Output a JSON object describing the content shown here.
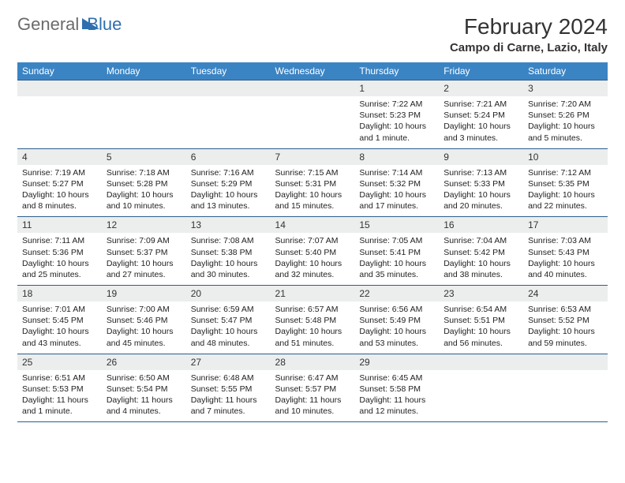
{
  "logo": {
    "text1": "General",
    "text2": "Blue"
  },
  "header": {
    "title": "February 2024",
    "location": "Campo di Carne, Lazio, Italy"
  },
  "colors": {
    "header_bg": "#3b84c4",
    "header_text": "#ffffff",
    "daynum_bg": "#eceded",
    "rule": "#2b5e8e",
    "logo_gray": "#6b6b6b",
    "logo_blue": "#2f6fb0"
  },
  "weekdays": [
    "Sunday",
    "Monday",
    "Tuesday",
    "Wednesday",
    "Thursday",
    "Friday",
    "Saturday"
  ],
  "weeks": [
    [
      null,
      null,
      null,
      null,
      {
        "n": "1",
        "sr": "Sunrise: 7:22 AM",
        "ss": "Sunset: 5:23 PM",
        "dl": "Daylight: 10 hours and 1 minute."
      },
      {
        "n": "2",
        "sr": "Sunrise: 7:21 AM",
        "ss": "Sunset: 5:24 PM",
        "dl": "Daylight: 10 hours and 3 minutes."
      },
      {
        "n": "3",
        "sr": "Sunrise: 7:20 AM",
        "ss": "Sunset: 5:26 PM",
        "dl": "Daylight: 10 hours and 5 minutes."
      }
    ],
    [
      {
        "n": "4",
        "sr": "Sunrise: 7:19 AM",
        "ss": "Sunset: 5:27 PM",
        "dl": "Daylight: 10 hours and 8 minutes."
      },
      {
        "n": "5",
        "sr": "Sunrise: 7:18 AM",
        "ss": "Sunset: 5:28 PM",
        "dl": "Daylight: 10 hours and 10 minutes."
      },
      {
        "n": "6",
        "sr": "Sunrise: 7:16 AM",
        "ss": "Sunset: 5:29 PM",
        "dl": "Daylight: 10 hours and 13 minutes."
      },
      {
        "n": "7",
        "sr": "Sunrise: 7:15 AM",
        "ss": "Sunset: 5:31 PM",
        "dl": "Daylight: 10 hours and 15 minutes."
      },
      {
        "n": "8",
        "sr": "Sunrise: 7:14 AM",
        "ss": "Sunset: 5:32 PM",
        "dl": "Daylight: 10 hours and 17 minutes."
      },
      {
        "n": "9",
        "sr": "Sunrise: 7:13 AM",
        "ss": "Sunset: 5:33 PM",
        "dl": "Daylight: 10 hours and 20 minutes."
      },
      {
        "n": "10",
        "sr": "Sunrise: 7:12 AM",
        "ss": "Sunset: 5:35 PM",
        "dl": "Daylight: 10 hours and 22 minutes."
      }
    ],
    [
      {
        "n": "11",
        "sr": "Sunrise: 7:11 AM",
        "ss": "Sunset: 5:36 PM",
        "dl": "Daylight: 10 hours and 25 minutes."
      },
      {
        "n": "12",
        "sr": "Sunrise: 7:09 AM",
        "ss": "Sunset: 5:37 PM",
        "dl": "Daylight: 10 hours and 27 minutes."
      },
      {
        "n": "13",
        "sr": "Sunrise: 7:08 AM",
        "ss": "Sunset: 5:38 PM",
        "dl": "Daylight: 10 hours and 30 minutes."
      },
      {
        "n": "14",
        "sr": "Sunrise: 7:07 AM",
        "ss": "Sunset: 5:40 PM",
        "dl": "Daylight: 10 hours and 32 minutes."
      },
      {
        "n": "15",
        "sr": "Sunrise: 7:05 AM",
        "ss": "Sunset: 5:41 PM",
        "dl": "Daylight: 10 hours and 35 minutes."
      },
      {
        "n": "16",
        "sr": "Sunrise: 7:04 AM",
        "ss": "Sunset: 5:42 PM",
        "dl": "Daylight: 10 hours and 38 minutes."
      },
      {
        "n": "17",
        "sr": "Sunrise: 7:03 AM",
        "ss": "Sunset: 5:43 PM",
        "dl": "Daylight: 10 hours and 40 minutes."
      }
    ],
    [
      {
        "n": "18",
        "sr": "Sunrise: 7:01 AM",
        "ss": "Sunset: 5:45 PM",
        "dl": "Daylight: 10 hours and 43 minutes."
      },
      {
        "n": "19",
        "sr": "Sunrise: 7:00 AM",
        "ss": "Sunset: 5:46 PM",
        "dl": "Daylight: 10 hours and 45 minutes."
      },
      {
        "n": "20",
        "sr": "Sunrise: 6:59 AM",
        "ss": "Sunset: 5:47 PM",
        "dl": "Daylight: 10 hours and 48 minutes."
      },
      {
        "n": "21",
        "sr": "Sunrise: 6:57 AM",
        "ss": "Sunset: 5:48 PM",
        "dl": "Daylight: 10 hours and 51 minutes."
      },
      {
        "n": "22",
        "sr": "Sunrise: 6:56 AM",
        "ss": "Sunset: 5:49 PM",
        "dl": "Daylight: 10 hours and 53 minutes."
      },
      {
        "n": "23",
        "sr": "Sunrise: 6:54 AM",
        "ss": "Sunset: 5:51 PM",
        "dl": "Daylight: 10 hours and 56 minutes."
      },
      {
        "n": "24",
        "sr": "Sunrise: 6:53 AM",
        "ss": "Sunset: 5:52 PM",
        "dl": "Daylight: 10 hours and 59 minutes."
      }
    ],
    [
      {
        "n": "25",
        "sr": "Sunrise: 6:51 AM",
        "ss": "Sunset: 5:53 PM",
        "dl": "Daylight: 11 hours and 1 minute."
      },
      {
        "n": "26",
        "sr": "Sunrise: 6:50 AM",
        "ss": "Sunset: 5:54 PM",
        "dl": "Daylight: 11 hours and 4 minutes."
      },
      {
        "n": "27",
        "sr": "Sunrise: 6:48 AM",
        "ss": "Sunset: 5:55 PM",
        "dl": "Daylight: 11 hours and 7 minutes."
      },
      {
        "n": "28",
        "sr": "Sunrise: 6:47 AM",
        "ss": "Sunset: 5:57 PM",
        "dl": "Daylight: 11 hours and 10 minutes."
      },
      {
        "n": "29",
        "sr": "Sunrise: 6:45 AM",
        "ss": "Sunset: 5:58 PM",
        "dl": "Daylight: 11 hours and 12 minutes."
      },
      null,
      null
    ]
  ]
}
